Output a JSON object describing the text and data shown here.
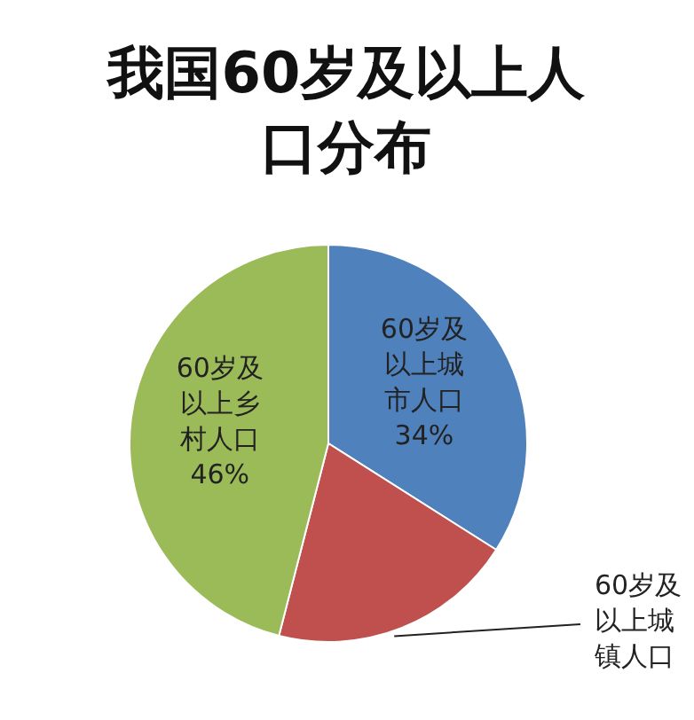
{
  "chart_data": {
    "type": "pie",
    "title": "我国60岁及以上人口分布",
    "categories": [
      "60岁及以上城市人口",
      "60岁及以上城镇人口",
      "60岁及以上乡村人口"
    ],
    "values": [
      34,
      20,
      46
    ],
    "colors": [
      "#4f81bd",
      "#c0504d",
      "#9bbb59"
    ],
    "value_labels": [
      "34%",
      null,
      "46%"
    ]
  }
}
